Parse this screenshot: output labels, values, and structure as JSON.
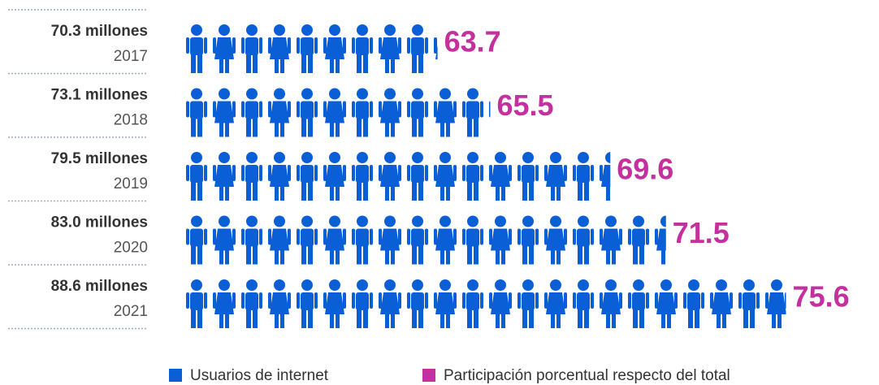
{
  "chart_data": {
    "type": "pictogram",
    "categories": [
      "2017",
      "2018",
      "2019",
      "2020",
      "2021"
    ],
    "series": [
      {
        "name": "Usuarios de internet",
        "color": "#0b5fd6",
        "values": [
          70.3,
          73.1,
          79.5,
          83.0,
          88.6
        ],
        "value_labels": [
          "70.3 millones",
          "73.1 millones",
          "79.5 millones",
          "83.0 millones",
          "88.6 millones"
        ]
      },
      {
        "name": "Participación porcentual respecto del total",
        "color": "#c4309e",
        "values": [
          63.7,
          65.5,
          69.6,
          71.5,
          75.6
        ]
      }
    ],
    "xlim": [
      55,
      76.5
    ]
  }
}
